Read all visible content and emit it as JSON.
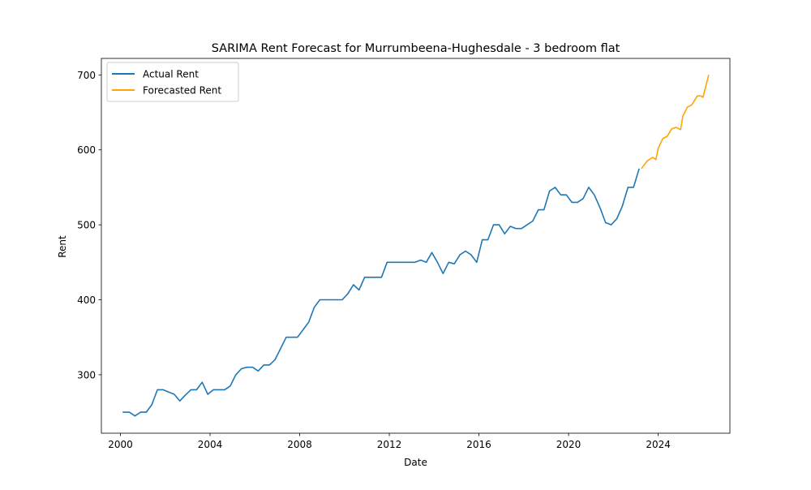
{
  "chart_data": {
    "type": "line",
    "title": "SARIMA Rent Forecast for Murrumbeena-Hughesdale - 3 bedroom flat",
    "xlabel": "Date",
    "ylabel": "Rent",
    "xlim": [
      1999.15,
      2027.2
    ],
    "ylim": [
      222,
      722
    ],
    "x_ticks": [
      2000,
      2004,
      2008,
      2012,
      2016,
      2020,
      2024
    ],
    "y_ticks": [
      300,
      400,
      500,
      600,
      700
    ],
    "grid": false,
    "legend_position": "top-left",
    "series": [
      {
        "name": "Actual Rent",
        "color": "#1f77b4",
        "x": [
          2000.1,
          2000.4,
          2000.65,
          2000.9,
          2001.15,
          2001.4,
          2001.65,
          2001.9,
          2002.15,
          2002.4,
          2002.65,
          2002.9,
          2003.15,
          2003.4,
          2003.65,
          2003.9,
          2004.15,
          2004.4,
          2004.65,
          2004.9,
          2005.15,
          2005.4,
          2005.65,
          2005.9,
          2006.15,
          2006.4,
          2006.65,
          2006.9,
          2007.15,
          2007.4,
          2007.65,
          2007.9,
          2008.15,
          2008.4,
          2008.65,
          2008.9,
          2009.15,
          2009.4,
          2009.65,
          2009.9,
          2010.15,
          2010.4,
          2010.65,
          2010.9,
          2011.15,
          2011.4,
          2011.65,
          2011.9,
          2012.15,
          2012.4,
          2012.65,
          2012.9,
          2013.15,
          2013.4,
          2013.65,
          2013.9,
          2014.15,
          2014.4,
          2014.65,
          2014.9,
          2015.15,
          2015.4,
          2015.65,
          2015.9,
          2016.15,
          2016.4,
          2016.65,
          2016.9,
          2017.15,
          2017.4,
          2017.65,
          2017.9,
          2018.15,
          2018.4,
          2018.65,
          2018.9,
          2019.15,
          2019.4,
          2019.65,
          2019.9,
          2020.15,
          2020.4,
          2020.65,
          2020.9,
          2021.15,
          2021.4,
          2021.65,
          2021.9,
          2022.15,
          2022.4,
          2022.65,
          2022.9,
          2023.15
        ],
        "values": [
          250,
          250,
          245,
          250,
          250,
          260,
          280,
          280,
          277,
          274,
          265,
          273,
          280,
          280,
          290,
          274,
          280,
          280,
          280,
          285,
          300,
          308,
          310,
          310,
          305,
          313,
          313,
          320,
          335,
          350,
          350,
          350,
          360,
          370,
          390,
          400,
          400,
          400,
          400,
          400,
          408,
          420,
          413,
          430,
          430,
          430,
          430,
          450,
          450,
          450,
          450,
          450,
          450,
          453,
          450,
          463,
          450,
          435,
          450,
          448,
          460,
          465,
          460,
          450,
          480,
          480,
          500,
          500,
          488,
          498,
          495,
          495,
          500,
          505,
          520,
          520,
          545,
          550,
          540,
          540,
          530,
          530,
          535,
          550,
          540,
          523,
          503,
          500,
          508,
          525,
          550,
          550,
          575
        ]
      },
      {
        "name": "Forecasted Rent",
        "color": "#ffa500",
        "x": [
          2023.25,
          2023.5,
          2023.75,
          2023.9,
          2024.0,
          2024.2,
          2024.4,
          2024.6,
          2024.8,
          2025.0,
          2025.1,
          2025.3,
          2025.5,
          2025.75,
          2025.9,
          2026.0,
          2026.15,
          2026.25
        ],
        "values": [
          575,
          585,
          590,
          587,
          602,
          615,
          618,
          628,
          630,
          627,
          645,
          657,
          660,
          672,
          672,
          670,
          688,
          700
        ]
      }
    ]
  }
}
